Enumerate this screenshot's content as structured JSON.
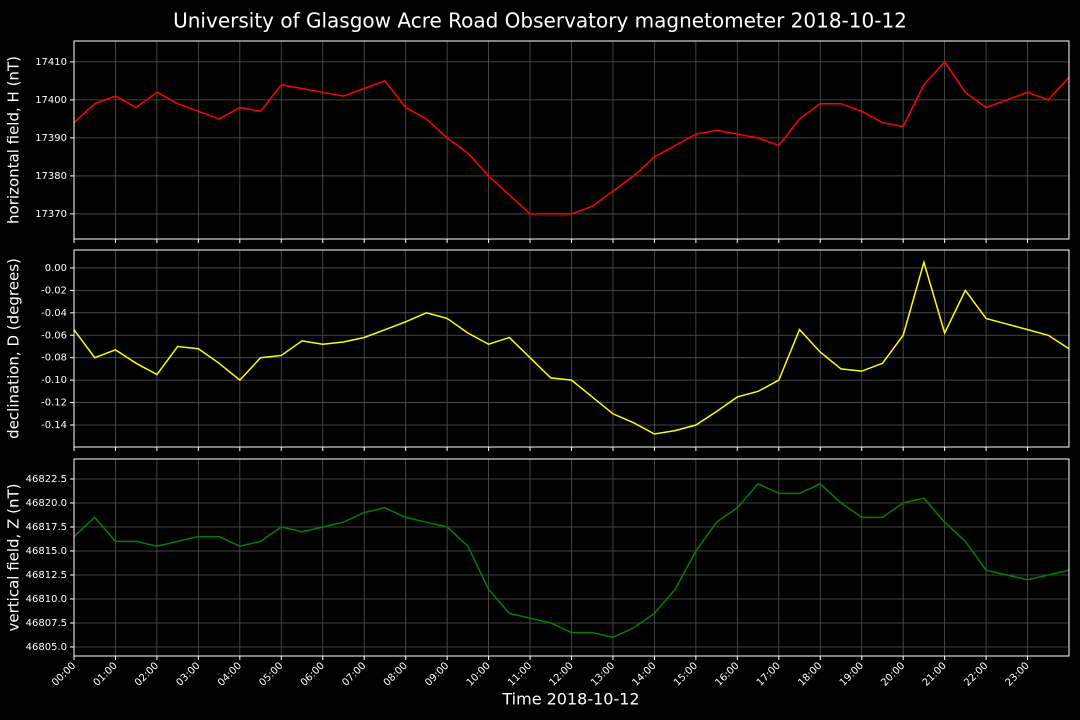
{
  "title": "University of Glasgow Acre Road Observatory magnetometer 2018-10-12",
  "xlabel": "Time 2018-10-12",
  "xlim": [
    0,
    24
  ],
  "x": [
    0,
    0.5,
    1,
    1.5,
    2,
    2.5,
    3,
    3.5,
    4,
    4.5,
    5,
    5.5,
    6,
    6.5,
    7,
    7.5,
    8,
    8.5,
    9,
    9.5,
    10,
    10.5,
    11,
    11.5,
    12,
    12.5,
    13,
    13.5,
    14,
    14.5,
    15,
    15.5,
    16,
    16.5,
    17,
    17.5,
    18,
    18.5,
    19,
    19.5,
    20,
    20.5,
    21,
    21.5,
    22,
    22.5,
    23,
    23.5,
    24
  ],
  "xticks": [
    {
      "value": 0,
      "label": "00:00"
    },
    {
      "value": 1,
      "label": "01:00"
    },
    {
      "value": 2,
      "label": "02:00"
    },
    {
      "value": 3,
      "label": "03:00"
    },
    {
      "value": 4,
      "label": "04:00"
    },
    {
      "value": 5,
      "label": "05:00"
    },
    {
      "value": 6,
      "label": "06:00"
    },
    {
      "value": 7,
      "label": "07:00"
    },
    {
      "value": 8,
      "label": "08:00"
    },
    {
      "value": 9,
      "label": "09:00"
    },
    {
      "value": 10,
      "label": "10:00"
    },
    {
      "value": 11,
      "label": "11:00"
    },
    {
      "value": 12,
      "label": "12:00"
    },
    {
      "value": 13,
      "label": "13:00"
    },
    {
      "value": 14,
      "label": "14:00"
    },
    {
      "value": 15,
      "label": "15:00"
    },
    {
      "value": 16,
      "label": "16:00"
    },
    {
      "value": 17,
      "label": "17:00"
    },
    {
      "value": 18,
      "label": "18:00"
    },
    {
      "value": 19,
      "label": "19:00"
    },
    {
      "value": 20,
      "label": "20:00"
    },
    {
      "value": 21,
      "label": "21:00"
    },
    {
      "value": 22,
      "label": "22:00"
    },
    {
      "value": 23,
      "label": "23:00"
    }
  ],
  "grid": true,
  "chart_data": [
    {
      "type": "line",
      "ylabel": "horizontal field, H (nT)",
      "color": "#ff0000",
      "ylim": [
        17363.4,
        17415.5
      ],
      "yticks": [
        17370,
        17380,
        17390,
        17400,
        17410
      ],
      "values": [
        17394,
        17399,
        17401,
        17398,
        17402,
        17399,
        17397,
        17395,
        17398,
        17397,
        17404,
        17403,
        17402,
        17401,
        17403,
        17405,
        17398,
        17395,
        17390,
        17386,
        17380,
        17375,
        17370,
        17370,
        17370,
        17372,
        17376,
        17380,
        17385,
        17388,
        17391,
        17392,
        17391,
        17390,
        17388,
        17395,
        17399,
        17399,
        17397,
        17394,
        17393,
        17404,
        17410,
        17402,
        17398,
        17400,
        17402,
        17400,
        17406
      ]
    },
    {
      "type": "line",
      "ylabel": "declination, D (degrees)",
      "color": "#ffff00",
      "ylim": [
        -0.1596,
        0.016
      ],
      "yticks": [
        -0.14,
        -0.12,
        {
          "value": -0.1,
          "label": "-0.10"
        },
        -0.08,
        -0.06,
        -0.04,
        -0.02,
        {
          "value": 0,
          "label": "0.00"
        }
      ],
      "values": [
        -0.055,
        -0.08,
        -0.073,
        -0.085,
        -0.095,
        -0.07,
        -0.072,
        -0.085,
        -0.1,
        -0.08,
        -0.078,
        -0.065,
        -0.068,
        -0.066,
        -0.062,
        -0.055,
        -0.048,
        -0.04,
        -0.045,
        -0.058,
        -0.068,
        -0.062,
        -0.08,
        -0.098,
        -0.1,
        -0.115,
        -0.13,
        -0.138,
        -0.148,
        -0.145,
        -0.14,
        -0.128,
        -0.115,
        -0.11,
        -0.1,
        -0.055,
        -0.075,
        -0.09,
        -0.092,
        -0.085,
        -0.06,
        0.005,
        -0.058,
        -0.02,
        -0.045,
        -0.05,
        -0.055,
        -0.06,
        -0.072
      ]
    },
    {
      "type": "line",
      "ylabel": "vertical field, Z (nT)",
      "color": "#008000",
      "ylim": [
        46804.06,
        46824.58
      ],
      "yticks": [
        {
          "value": 46805,
          "label": "46805.0"
        },
        46807.5,
        {
          "value": 46810,
          "label": "46810.0"
        },
        46812.5,
        {
          "value": 46815,
          "label": "46815.0"
        },
        46817.5,
        {
          "value": 46820,
          "label": "46820.0"
        },
        46822.5
      ],
      "values": [
        46816.5,
        46818.5,
        46816,
        46816,
        46815.5,
        46816,
        46816.5,
        46816.5,
        46815.5,
        46816,
        46817.5,
        46817,
        46817.5,
        46818,
        46819,
        46819.5,
        46818.5,
        46818,
        46817.5,
        46815.5,
        46811,
        46808.5,
        46808,
        46807.5,
        46806.5,
        46806.5,
        46806,
        46807,
        46808.5,
        46811,
        46815,
        46818,
        46819.5,
        46822,
        46821,
        46821,
        46822,
        46820,
        46818.5,
        46818.5,
        46820,
        46820.5,
        46818,
        46816,
        46813,
        46812.5,
        46812,
        46812.5,
        46813
      ]
    }
  ]
}
